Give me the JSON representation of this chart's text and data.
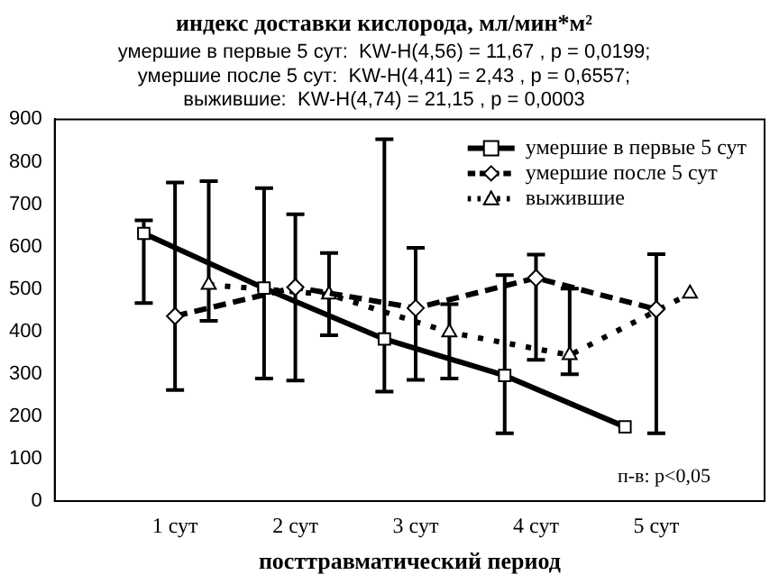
{
  "chart_data": {
    "type": "line",
    "title": "индекс доставки кислорода, мл/мин*м²",
    "subtitle": "умершие в первые 5 сут:  KW-H(4,56) = 11,67 , p = 0,0199;\nумершие после 5 сут:  KW-H(4,41) = 2,43 , p = 0,6557;\nвыжившие:  KW-H(4,74) = 21,15 , p = 0,0003",
    "xlabel": "посттравматический период",
    "xlim": [
      0,
      5.9
    ],
    "xticks": [
      {
        "value": 1,
        "label": "1 сут"
      },
      {
        "value": 2,
        "label": "2 сут"
      },
      {
        "value": 3,
        "label": "3 сут"
      },
      {
        "value": 4,
        "label": "4 сут"
      },
      {
        "value": 5,
        "label": "5 сут"
      }
    ],
    "ylim": [
      0,
      900
    ],
    "yticks": [
      0,
      100,
      200,
      300,
      400,
      500,
      600,
      700,
      800,
      900
    ],
    "legend": "top right",
    "annotations": [
      "п-в: p<0,05"
    ],
    "series": [
      {
        "name": "умершие в первые 5 сут",
        "color": "#000000",
        "marker": "square",
        "line_style": "solid",
        "x": [
          0.74,
          1.74,
          2.74,
          3.74,
          4.74
        ],
        "values": [
          631,
          502,
          382,
          296,
          175
        ],
        "errors": [
          [
            467,
            662
          ],
          [
            289,
            738
          ],
          [
            258,
            853
          ],
          [
            160,
            533
          ],
          null
        ]
      },
      {
        "name": "умершие после 5 сут",
        "color": "#000000",
        "marker": "diamond",
        "line_style": "dashed",
        "x": [
          1,
          2,
          3,
          4,
          5
        ],
        "values": [
          436,
          504,
          455,
          526,
          452
        ],
        "errors": [
          [
            262,
            751
          ],
          [
            284,
            676
          ],
          [
            286,
            597
          ],
          [
            333,
            581
          ],
          [
            160,
            582
          ]
        ]
      },
      {
        "name": "выжившие",
        "color": "#000000",
        "marker": "triangle",
        "line_style": "dotted",
        "x": [
          1.28,
          2.28,
          3.28,
          4.28,
          5.28
        ],
        "values": [
          510,
          487,
          398,
          344,
          489
        ],
        "errors": [
          [
            425,
            754
          ],
          [
            391,
            585
          ],
          [
            289,
            464
          ],
          [
            299,
            501
          ],
          null
        ]
      }
    ]
  }
}
